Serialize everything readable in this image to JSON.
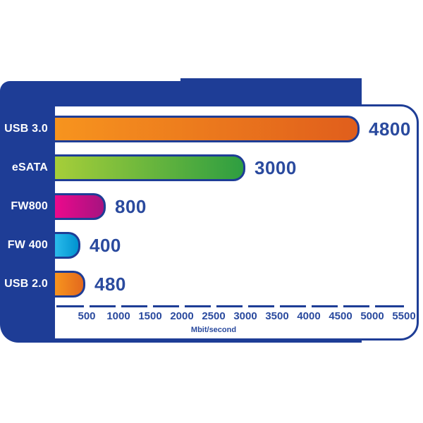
{
  "colors": {
    "panel_blue": "#1e3d96",
    "border_blue": "#1e3d96",
    "value_text_blue": "#2a4a9e",
    "label_text_white": "#ffffff",
    "card_background": "#ffffff"
  },
  "chart_data": {
    "type": "bar",
    "orientation": "horizontal",
    "title": "",
    "xlabel": "Mbit/second",
    "ylabel": "",
    "xlim": [
      0,
      5500
    ],
    "grid": false,
    "legend": "none",
    "categories": [
      "USB 3.0",
      "eSATA",
      "FW800",
      "FW 400",
      "USB 2.0"
    ],
    "values": [
      4800,
      3000,
      800,
      400,
      480
    ],
    "value_labels": [
      "4800",
      "3000",
      "800",
      "400",
      "480"
    ],
    "x_ticks": [
      500,
      1000,
      1500,
      2000,
      2500,
      3000,
      3500,
      4000,
      4500,
      5000,
      5500
    ],
    "bar_gradients": [
      {
        "start": "#f7941e",
        "end": "#e05e1c"
      },
      {
        "start": "#a6ce39",
        "end": "#2e9e41"
      },
      {
        "start": "#ec098c",
        "end": "#a61380"
      },
      {
        "start": "#2abbeb",
        "end": "#0093d0"
      },
      {
        "start": "#f7941e",
        "end": "#e3691e"
      }
    ]
  }
}
